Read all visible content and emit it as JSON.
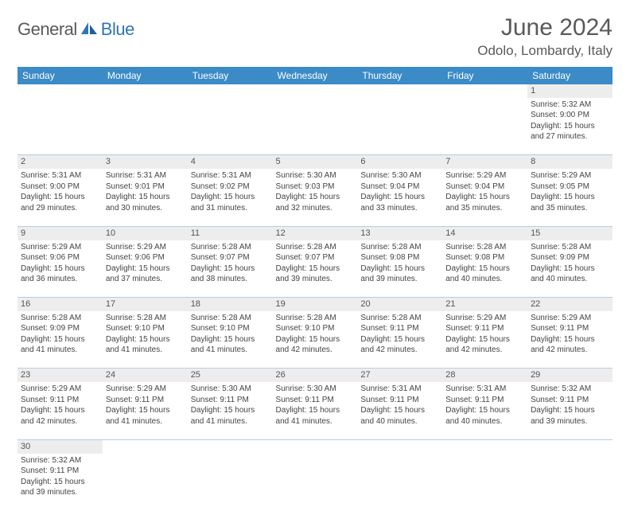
{
  "brand": {
    "general": "General",
    "blue": "Blue"
  },
  "title": "June 2024",
  "location": "Odolo, Lombardy, Italy",
  "colors": {
    "header_bg": "#3b8bc7",
    "header_text": "#ffffff",
    "daynum_bg": "#ededed",
    "border": "#b8cde0",
    "title_color": "#595959",
    "logo_gray": "#5a5a5a",
    "logo_blue": "#2e75b6"
  },
  "day_headers": [
    "Sunday",
    "Monday",
    "Tuesday",
    "Wednesday",
    "Thursday",
    "Friday",
    "Saturday"
  ],
  "weeks": [
    {
      "nums": [
        "",
        "",
        "",
        "",
        "",
        "",
        "1"
      ],
      "cells": [
        null,
        null,
        null,
        null,
        null,
        null,
        {
          "sunrise": "Sunrise: 5:32 AM",
          "sunset": "Sunset: 9:00 PM",
          "day1": "Daylight: 15 hours",
          "day2": "and 27 minutes."
        }
      ]
    },
    {
      "nums": [
        "2",
        "3",
        "4",
        "5",
        "6",
        "7",
        "8"
      ],
      "cells": [
        {
          "sunrise": "Sunrise: 5:31 AM",
          "sunset": "Sunset: 9:00 PM",
          "day1": "Daylight: 15 hours",
          "day2": "and 29 minutes."
        },
        {
          "sunrise": "Sunrise: 5:31 AM",
          "sunset": "Sunset: 9:01 PM",
          "day1": "Daylight: 15 hours",
          "day2": "and 30 minutes."
        },
        {
          "sunrise": "Sunrise: 5:31 AM",
          "sunset": "Sunset: 9:02 PM",
          "day1": "Daylight: 15 hours",
          "day2": "and 31 minutes."
        },
        {
          "sunrise": "Sunrise: 5:30 AM",
          "sunset": "Sunset: 9:03 PM",
          "day1": "Daylight: 15 hours",
          "day2": "and 32 minutes."
        },
        {
          "sunrise": "Sunrise: 5:30 AM",
          "sunset": "Sunset: 9:04 PM",
          "day1": "Daylight: 15 hours",
          "day2": "and 33 minutes."
        },
        {
          "sunrise": "Sunrise: 5:29 AM",
          "sunset": "Sunset: 9:04 PM",
          "day1": "Daylight: 15 hours",
          "day2": "and 35 minutes."
        },
        {
          "sunrise": "Sunrise: 5:29 AM",
          "sunset": "Sunset: 9:05 PM",
          "day1": "Daylight: 15 hours",
          "day2": "and 35 minutes."
        }
      ]
    },
    {
      "nums": [
        "9",
        "10",
        "11",
        "12",
        "13",
        "14",
        "15"
      ],
      "cells": [
        {
          "sunrise": "Sunrise: 5:29 AM",
          "sunset": "Sunset: 9:06 PM",
          "day1": "Daylight: 15 hours",
          "day2": "and 36 minutes."
        },
        {
          "sunrise": "Sunrise: 5:29 AM",
          "sunset": "Sunset: 9:06 PM",
          "day1": "Daylight: 15 hours",
          "day2": "and 37 minutes."
        },
        {
          "sunrise": "Sunrise: 5:28 AM",
          "sunset": "Sunset: 9:07 PM",
          "day1": "Daylight: 15 hours",
          "day2": "and 38 minutes."
        },
        {
          "sunrise": "Sunrise: 5:28 AM",
          "sunset": "Sunset: 9:07 PM",
          "day1": "Daylight: 15 hours",
          "day2": "and 39 minutes."
        },
        {
          "sunrise": "Sunrise: 5:28 AM",
          "sunset": "Sunset: 9:08 PM",
          "day1": "Daylight: 15 hours",
          "day2": "and 39 minutes."
        },
        {
          "sunrise": "Sunrise: 5:28 AM",
          "sunset": "Sunset: 9:08 PM",
          "day1": "Daylight: 15 hours",
          "day2": "and 40 minutes."
        },
        {
          "sunrise": "Sunrise: 5:28 AM",
          "sunset": "Sunset: 9:09 PM",
          "day1": "Daylight: 15 hours",
          "day2": "and 40 minutes."
        }
      ]
    },
    {
      "nums": [
        "16",
        "17",
        "18",
        "19",
        "20",
        "21",
        "22"
      ],
      "cells": [
        {
          "sunrise": "Sunrise: 5:28 AM",
          "sunset": "Sunset: 9:09 PM",
          "day1": "Daylight: 15 hours",
          "day2": "and 41 minutes."
        },
        {
          "sunrise": "Sunrise: 5:28 AM",
          "sunset": "Sunset: 9:10 PM",
          "day1": "Daylight: 15 hours",
          "day2": "and 41 minutes."
        },
        {
          "sunrise": "Sunrise: 5:28 AM",
          "sunset": "Sunset: 9:10 PM",
          "day1": "Daylight: 15 hours",
          "day2": "and 41 minutes."
        },
        {
          "sunrise": "Sunrise: 5:28 AM",
          "sunset": "Sunset: 9:10 PM",
          "day1": "Daylight: 15 hours",
          "day2": "and 42 minutes."
        },
        {
          "sunrise": "Sunrise: 5:28 AM",
          "sunset": "Sunset: 9:11 PM",
          "day1": "Daylight: 15 hours",
          "day2": "and 42 minutes."
        },
        {
          "sunrise": "Sunrise: 5:29 AM",
          "sunset": "Sunset: 9:11 PM",
          "day1": "Daylight: 15 hours",
          "day2": "and 42 minutes."
        },
        {
          "sunrise": "Sunrise: 5:29 AM",
          "sunset": "Sunset: 9:11 PM",
          "day1": "Daylight: 15 hours",
          "day2": "and 42 minutes."
        }
      ]
    },
    {
      "nums": [
        "23",
        "24",
        "25",
        "26",
        "27",
        "28",
        "29"
      ],
      "cells": [
        {
          "sunrise": "Sunrise: 5:29 AM",
          "sunset": "Sunset: 9:11 PM",
          "day1": "Daylight: 15 hours",
          "day2": "and 42 minutes."
        },
        {
          "sunrise": "Sunrise: 5:29 AM",
          "sunset": "Sunset: 9:11 PM",
          "day1": "Daylight: 15 hours",
          "day2": "and 41 minutes."
        },
        {
          "sunrise": "Sunrise: 5:30 AM",
          "sunset": "Sunset: 9:11 PM",
          "day1": "Daylight: 15 hours",
          "day2": "and 41 minutes."
        },
        {
          "sunrise": "Sunrise: 5:30 AM",
          "sunset": "Sunset: 9:11 PM",
          "day1": "Daylight: 15 hours",
          "day2": "and 41 minutes."
        },
        {
          "sunrise": "Sunrise: 5:31 AM",
          "sunset": "Sunset: 9:11 PM",
          "day1": "Daylight: 15 hours",
          "day2": "and 40 minutes."
        },
        {
          "sunrise": "Sunrise: 5:31 AM",
          "sunset": "Sunset: 9:11 PM",
          "day1": "Daylight: 15 hours",
          "day2": "and 40 minutes."
        },
        {
          "sunrise": "Sunrise: 5:32 AM",
          "sunset": "Sunset: 9:11 PM",
          "day1": "Daylight: 15 hours",
          "day2": "and 39 minutes."
        }
      ]
    },
    {
      "nums": [
        "30",
        "",
        "",
        "",
        "",
        "",
        ""
      ],
      "cells": [
        {
          "sunrise": "Sunrise: 5:32 AM",
          "sunset": "Sunset: 9:11 PM",
          "day1": "Daylight: 15 hours",
          "day2": "and 39 minutes."
        },
        null,
        null,
        null,
        null,
        null,
        null
      ]
    }
  ]
}
